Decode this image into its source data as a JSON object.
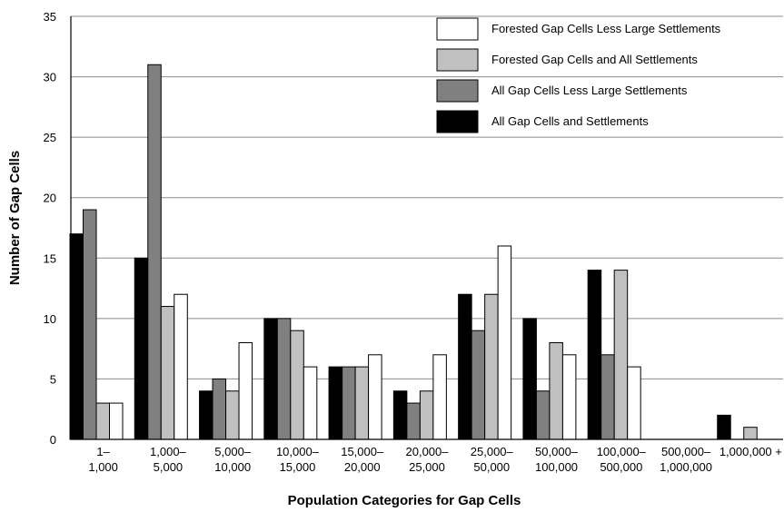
{
  "chart_data": {
    "type": "bar",
    "xlabel": "Population Categories for Gap Cells",
    "ylabel": "Number of Gap Cells",
    "ylim": [
      0,
      35
    ],
    "yticks": [
      0,
      5,
      10,
      15,
      20,
      25,
      30,
      35
    ],
    "grid": true,
    "legend_position": "top-right",
    "categories": [
      [
        "1–",
        "1,000"
      ],
      [
        "1,000–",
        "5,000"
      ],
      [
        "5,000–",
        "10,000"
      ],
      [
        "10,000–",
        "15,000"
      ],
      [
        "15,000–",
        "20,000"
      ],
      [
        "20,000–",
        "25,000"
      ],
      [
        "25,000–",
        "50,000"
      ],
      [
        "50,000–",
        "100,000"
      ],
      [
        "100,000–",
        "500,000"
      ],
      [
        "500,000–",
        "1,000,000"
      ],
      [
        "1,000,000 +"
      ]
    ],
    "series": [
      {
        "name": "All Gap Cells and Settlements",
        "color": "#000000",
        "values": [
          17,
          15,
          4,
          10,
          6,
          4,
          12,
          10,
          14,
          0,
          2
        ]
      },
      {
        "name": "All Gap Cells Less Large Settlements",
        "color": "#808080",
        "values": [
          19,
          31,
          5,
          10,
          6,
          3,
          9,
          4,
          7,
          0,
          0
        ]
      },
      {
        "name": "Forested Gap Cells and All Settlements",
        "color": "#c0c0c0",
        "values": [
          3,
          11,
          4,
          9,
          6,
          4,
          12,
          8,
          14,
          0,
          1
        ]
      },
      {
        "name": "Forested Gap Cells Less Large Settlements",
        "color": "#ffffff",
        "values": [
          3,
          12,
          8,
          6,
          7,
          7,
          16,
          7,
          6,
          0,
          0
        ]
      }
    ],
    "legend_order": [
      3,
      2,
      1,
      0
    ]
  }
}
